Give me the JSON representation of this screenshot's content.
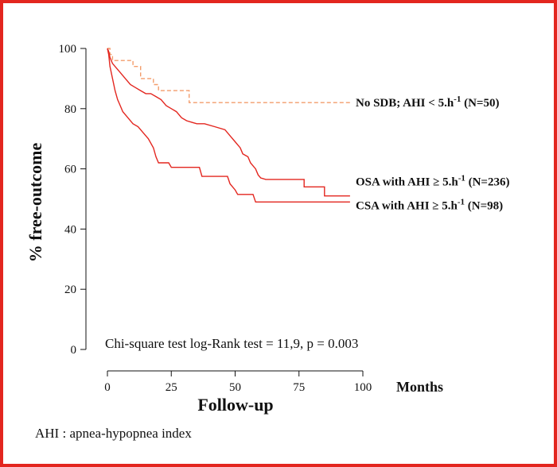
{
  "chart_data": {
    "type": "line",
    "subtype": "kaplan-meier",
    "ylabel": "% free-outcome",
    "xlabel": "Follow-up",
    "x_unit": "Months",
    "xlim": [
      0,
      100
    ],
    "ylim": [
      0,
      100
    ],
    "x_ticks": [
      0,
      25,
      50,
      75,
      100
    ],
    "y_ticks": [
      0,
      20,
      40,
      60,
      80,
      100
    ],
    "grid": false,
    "annotation": "Chi-square test log-Rank test = 11,9, p = 0.003",
    "series": [
      {
        "label_parts": {
          "main": "No SDB; AHI < 5.h",
          "sup": "-1",
          "tail": " (N=50)"
        },
        "color": "#f39c6b",
        "dash": true,
        "points": [
          [
            0,
            100
          ],
          [
            1,
            100
          ],
          [
            1,
            98
          ],
          [
            2,
            98
          ],
          [
            2,
            96
          ],
          [
            10,
            96
          ],
          [
            10,
            94
          ],
          [
            13,
            94
          ],
          [
            13,
            90
          ],
          [
            18,
            90
          ],
          [
            18,
            88
          ],
          [
            20,
            88
          ],
          [
            20,
            86
          ],
          [
            32,
            86
          ],
          [
            32,
            82
          ],
          [
            95,
            82
          ]
        ]
      },
      {
        "label_parts": {
          "main": "OSA with AHI ≥ 5.h",
          "sup": "-1",
          "tail": " (N=236)"
        },
        "color": "#e3261f",
        "dash": false,
        "points": [
          [
            0,
            100
          ],
          [
            0.5,
            99
          ],
          [
            1,
            97
          ],
          [
            2,
            95
          ],
          [
            3,
            94
          ],
          [
            5,
            92
          ],
          [
            7,
            90
          ],
          [
            9,
            88
          ],
          [
            11,
            87
          ],
          [
            13,
            86
          ],
          [
            15,
            85
          ],
          [
            17,
            85
          ],
          [
            19,
            84
          ],
          [
            21,
            83
          ],
          [
            23,
            81
          ],
          [
            25,
            80
          ],
          [
            27,
            79
          ],
          [
            29,
            77
          ],
          [
            31,
            76
          ],
          [
            33,
            75.5
          ],
          [
            35,
            75
          ],
          [
            38,
            75
          ],
          [
            42,
            74
          ],
          [
            46,
            73
          ],
          [
            48,
            71
          ],
          [
            50,
            69
          ],
          [
            51,
            68
          ],
          [
            52,
            67
          ],
          [
            53,
            65
          ],
          [
            55,
            64
          ],
          [
            56,
            62
          ],
          [
            57,
            61
          ],
          [
            58,
            60
          ],
          [
            59,
            58
          ],
          [
            60,
            57
          ],
          [
            62,
            56.5
          ],
          [
            77,
            56.5
          ],
          [
            77,
            54
          ],
          [
            85,
            54
          ],
          [
            85,
            51
          ],
          [
            95,
            51
          ]
        ]
      },
      {
        "label_parts": {
          "main": "CSA with AHI ≥ 5.h",
          "sup": "-1",
          "tail": " (N=98)"
        },
        "color": "#e3261f",
        "dash": false,
        "points": [
          [
            0,
            100
          ],
          [
            0.5,
            98
          ],
          [
            1,
            94
          ],
          [
            2,
            90
          ],
          [
            3,
            86
          ],
          [
            4,
            83
          ],
          [
            5,
            81
          ],
          [
            6,
            79
          ],
          [
            8,
            77
          ],
          [
            10,
            75
          ],
          [
            12,
            74
          ],
          [
            14,
            72
          ],
          [
            16,
            70
          ],
          [
            18,
            67
          ],
          [
            19,
            64
          ],
          [
            20,
            62
          ],
          [
            24,
            62
          ],
          [
            25,
            60.5
          ],
          [
            36,
            60.5
          ],
          [
            37,
            57.5
          ],
          [
            47,
            57.5
          ],
          [
            48,
            55
          ],
          [
            50,
            53
          ],
          [
            51,
            51.5
          ],
          [
            57,
            51.5
          ],
          [
            58,
            49
          ],
          [
            95,
            49
          ]
        ]
      }
    ]
  },
  "footnote": "AHI : apnea-hypopnea index"
}
